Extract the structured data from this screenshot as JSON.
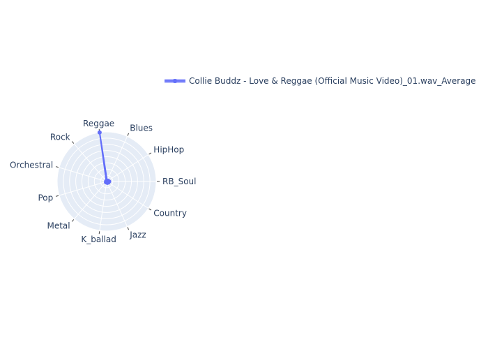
{
  "chart_data": {
    "type": "radar",
    "title": "",
    "categories": [
      "RB_Soul",
      "HipHop",
      "Blues",
      "Reggae",
      "Rock",
      "Orchestral",
      "Pop",
      "Metal",
      "K_ballad",
      "Jazz",
      "Country"
    ],
    "series": [
      {
        "name": "Collie Buddz - Love & Reggae (Official Music Video)_01.wav_Average",
        "values": [
          0.05,
          0.03,
          0.02,
          1.0,
          0.01,
          0.01,
          0.01,
          0.02,
          0.01,
          0.03,
          0.04
        ],
        "color": "#636efa"
      }
    ],
    "radial_range": [
      0,
      1.0
    ],
    "grid": true,
    "legend_position": "top-right",
    "colors": {
      "polar_background": "#e5ecf6",
      "grid": "#ffffff",
      "text": "#2a3f5f"
    }
  }
}
